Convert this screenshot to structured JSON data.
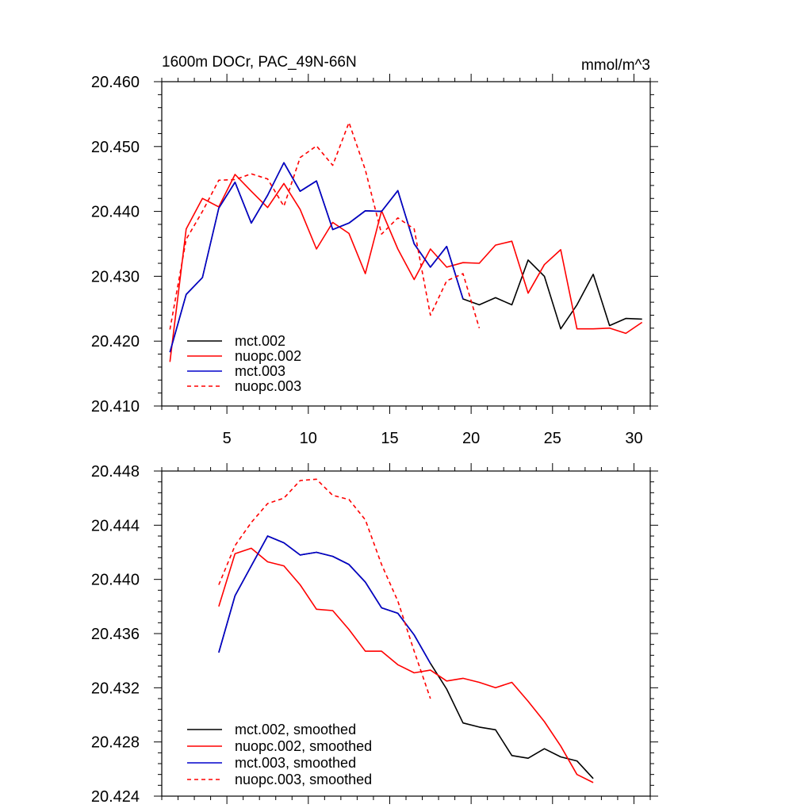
{
  "chart_data": [
    {
      "type": "line",
      "title": "1600m DOCr, PAC_49N-66N",
      "units": "mmol/m^3",
      "xlim": [
        1,
        31
      ],
      "ylim": [
        20.41,
        20.46
      ],
      "xticks": [
        5,
        10,
        15,
        20,
        25,
        30
      ],
      "xtick_labels": [
        "5",
        "10",
        "15",
        "20",
        "25",
        "30"
      ],
      "yticks": [
        20.41,
        20.42,
        20.43,
        20.44,
        20.45,
        20.46
      ],
      "ytick_labels": [
        "20.410",
        "20.420",
        "20.430",
        "20.440",
        "20.450",
        "20.460"
      ],
      "legend_position": "bottom-left",
      "series": [
        {
          "name": "mct.002",
          "color": "#000000",
          "dash": "solid",
          "x": [
            1.5,
            2.5,
            3.5,
            4.5,
            5.5,
            6.5,
            7.5,
            8.5,
            9.5,
            10.5,
            11.5,
            12.5,
            13.5,
            14.5,
            15.5,
            16.5,
            17.5,
            18.5,
            19.5,
            20.5,
            21.5,
            22.5,
            23.5,
            24.5,
            25.5,
            26.5,
            27.5,
            28.5,
            29.5,
            30.5
          ],
          "y": [
            20.4183,
            20.4272,
            20.4298,
            20.4405,
            20.4445,
            20.4382,
            20.4425,
            20.4475,
            20.4431,
            20.4447,
            20.4372,
            20.4382,
            20.4401,
            20.44,
            20.4432,
            20.435,
            20.4314,
            20.4346,
            20.4265,
            20.4256,
            20.4267,
            20.4256,
            20.4325,
            20.43,
            20.4219,
            20.4256,
            20.4303,
            20.4224,
            20.4235,
            20.4234
          ]
        },
        {
          "name": "nuopc.002",
          "color": "#ff0000",
          "dash": "solid",
          "x": [
            1.5,
            2.5,
            3.5,
            4.5,
            5.5,
            6.5,
            7.5,
            8.5,
            9.5,
            10.5,
            11.5,
            12.5,
            13.5,
            14.5,
            15.5,
            16.5,
            17.5,
            18.5,
            19.5,
            20.5,
            21.5,
            22.5,
            23.5,
            24.5,
            25.5,
            26.5,
            27.5,
            28.5,
            29.5,
            30.5
          ],
          "y": [
            20.4168,
            20.4373,
            20.442,
            20.4407,
            20.4457,
            20.4431,
            20.4406,
            20.4443,
            20.4403,
            20.4342,
            20.4383,
            20.4366,
            20.4304,
            20.4401,
            20.4342,
            20.4295,
            20.4342,
            20.4314,
            20.4321,
            20.432,
            20.4348,
            20.4354,
            20.4274,
            20.4318,
            20.4341,
            20.4219,
            20.4219,
            20.422,
            20.4212,
            20.4229
          ]
        },
        {
          "name": "mct.003",
          "color": "#0000cc",
          "dash": "solid",
          "x": [
            1.5,
            2.5,
            3.5,
            4.5,
            5.5,
            6.5,
            7.5,
            8.5,
            9.5,
            10.5,
            11.5,
            12.5,
            13.5,
            14.5,
            15.5,
            16.5,
            17.5,
            18.5,
            19.5
          ],
          "y": [
            20.4183,
            20.4272,
            20.4298,
            20.4405,
            20.4445,
            20.4382,
            20.4425,
            20.4475,
            20.4431,
            20.4447,
            20.4372,
            20.4382,
            20.4401,
            20.44,
            20.4432,
            20.435,
            20.4314,
            20.4346,
            20.4265
          ]
        },
        {
          "name": "nuopc.003",
          "color": "#ff0000",
          "dash": "dashed",
          "x": [
            1.5,
            2.5,
            3.5,
            4.5,
            5.5,
            6.5,
            7.5,
            8.5,
            9.5,
            10.5,
            11.5,
            12.5,
            13.5,
            14.5,
            15.5,
            16.5,
            17.5,
            18.5,
            19.5,
            20.5
          ],
          "y": [
            20.4218,
            20.4357,
            20.44,
            20.4448,
            20.4449,
            20.4458,
            20.445,
            20.4408,
            20.4483,
            20.4501,
            20.4471,
            20.4537,
            20.4464,
            20.4365,
            20.439,
            20.4373,
            20.424,
            20.4293,
            20.4304,
            20.422
          ]
        }
      ]
    },
    {
      "type": "line",
      "xlim": [
        1,
        31
      ],
      "ylim": [
        20.424,
        20.448
      ],
      "xticks": [
        5,
        10,
        15,
        20,
        25,
        30
      ],
      "xtick_labels": [],
      "yticks": [
        20.424,
        20.428,
        20.432,
        20.436,
        20.44,
        20.444,
        20.448
      ],
      "ytick_labels": [
        "20.424",
        "20.428",
        "20.432",
        "20.436",
        "20.440",
        "20.444",
        "20.448"
      ],
      "legend_position": "bottom-left",
      "series": [
        {
          "name": "mct.002, smoothed",
          "color": "#000000",
          "dash": "solid",
          "x": [
            4.5,
            5.5,
            6.5,
            7.5,
            8.5,
            9.5,
            10.5,
            11.5,
            12.5,
            13.5,
            14.5,
            15.5,
            16.5,
            17.5,
            18.5,
            19.5,
            20.5,
            21.5,
            22.5,
            23.5,
            24.5,
            25.5,
            26.5,
            27.5
          ],
          "y": [
            20.4346,
            20.4388,
            20.441,
            20.4432,
            20.4427,
            20.4418,
            20.442,
            20.4417,
            20.4411,
            20.4398,
            20.4379,
            20.4375,
            20.4359,
            20.4338,
            20.4319,
            20.4294,
            20.4291,
            20.4289,
            20.427,
            20.4268,
            20.4275,
            20.4269,
            20.4266,
            20.4253
          ]
        },
        {
          "name": "nuopc.002, smoothed",
          "color": "#ff0000",
          "dash": "solid",
          "x": [
            4.5,
            5.5,
            6.5,
            7.5,
            8.5,
            9.5,
            10.5,
            11.5,
            12.5,
            13.5,
            14.5,
            15.5,
            16.5,
            17.5,
            18.5,
            19.5,
            20.5,
            21.5,
            22.5,
            23.5,
            24.5,
            25.5,
            26.5,
            27.5
          ],
          "y": [
            20.438,
            20.4419,
            20.4423,
            20.4413,
            20.441,
            20.4396,
            20.4378,
            20.4377,
            20.4363,
            20.4347,
            20.4347,
            20.4337,
            20.4331,
            20.4333,
            20.4325,
            20.4327,
            20.4324,
            20.432,
            20.4324,
            20.431,
            20.4295,
            20.4277,
            20.4256,
            20.425
          ]
        },
        {
          "name": "mct.003, smoothed",
          "color": "#0000cc",
          "dash": "solid",
          "x": [
            4.5,
            5.5,
            6.5,
            7.5,
            8.5,
            9.5,
            10.5,
            11.5,
            12.5,
            13.5,
            14.5,
            15.5,
            16.5,
            17.5
          ],
          "y": [
            20.4346,
            20.4388,
            20.441,
            20.4432,
            20.4427,
            20.4418,
            20.442,
            20.4417,
            20.4411,
            20.4398,
            20.4379,
            20.4375,
            20.4359,
            20.4338
          ]
        },
        {
          "name": "nuopc.003, smoothed",
          "color": "#ff0000",
          "dash": "dashed",
          "x": [
            4.5,
            5.5,
            6.5,
            7.5,
            8.5,
            9.5,
            10.5,
            11.5,
            12.5,
            13.5,
            14.5,
            15.5,
            16.5,
            17.5
          ],
          "y": [
            20.4396,
            20.4425,
            20.4442,
            20.4456,
            20.446,
            20.4473,
            20.4474,
            20.4462,
            20.4459,
            20.4444,
            20.4411,
            20.4384,
            20.4347,
            20.4312
          ]
        }
      ]
    }
  ]
}
